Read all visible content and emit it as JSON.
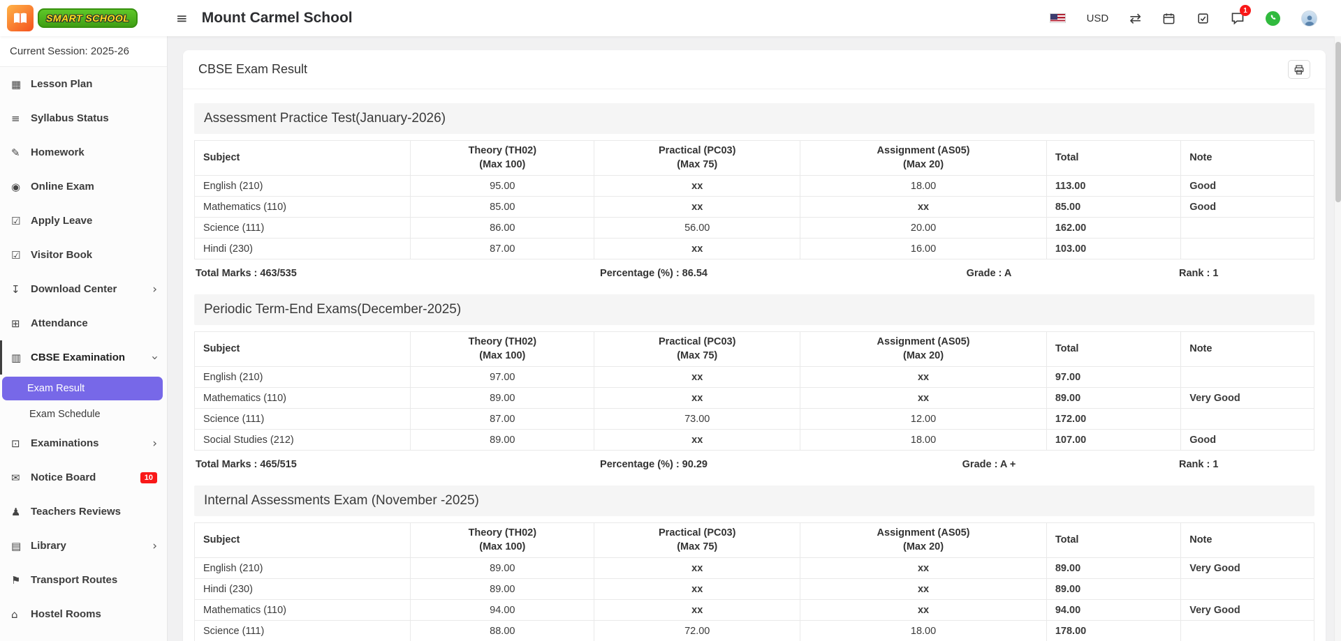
{
  "header": {
    "logo_text": "SMART SCHOOL",
    "school_name": "Mount Carmel School",
    "currency": "USD",
    "chat_badge": "1",
    "icons": {
      "hamburger": "≡",
      "exchange": "⇄"
    }
  },
  "colors": {
    "accent_purple": "#7768e8",
    "badge_red": "#f91818",
    "whatsapp_green": "#31ba3e",
    "logo_green": "#4aad1e",
    "logo_orange": "#f4511e",
    "section_band": "#f5f5f5"
  },
  "sidebar": {
    "session": "Current Session: 2025-26",
    "items": [
      {
        "label": "Lesson Plan",
        "icon": "lesson-plan-icon",
        "glyph": "▦"
      },
      {
        "label": "Syllabus Status",
        "icon": "syllabus-status-icon",
        "glyph": "≡"
      },
      {
        "label": "Homework",
        "icon": "homework-icon",
        "glyph": "✎"
      },
      {
        "label": "Online Exam",
        "icon": "online-exam-icon",
        "glyph": "◉"
      },
      {
        "label": "Apply Leave",
        "icon": "apply-leave-icon",
        "glyph": "☑"
      },
      {
        "label": "Visitor Book",
        "icon": "visitor-book-icon",
        "glyph": "☑"
      },
      {
        "label": "Download Center",
        "icon": "download-center-icon",
        "glyph": "↧",
        "chevron": "right"
      },
      {
        "label": "Attendance",
        "icon": "attendance-icon",
        "glyph": "⊞"
      },
      {
        "label": "CBSE Examination",
        "icon": "cbse-examination-icon",
        "glyph": "▥",
        "chevron": "down",
        "active": true,
        "children": [
          {
            "label": "Exam Result",
            "active": true
          },
          {
            "label": "Exam Schedule"
          }
        ]
      },
      {
        "label": "Examinations",
        "icon": "examinations-icon",
        "glyph": "⊡",
        "chevron": "right"
      },
      {
        "label": "Notice Board",
        "icon": "notice-board-icon",
        "glyph": "✉",
        "badge": "10"
      },
      {
        "label": "Teachers Reviews",
        "icon": "teachers-reviews-icon",
        "glyph": "♟"
      },
      {
        "label": "Library",
        "icon": "library-icon",
        "glyph": "▤",
        "chevron": "right"
      },
      {
        "label": "Transport Routes",
        "icon": "transport-routes-icon",
        "glyph": "⚑"
      },
      {
        "label": "Hostel Rooms",
        "icon": "hostel-rooms-icon",
        "glyph": "⌂"
      }
    ]
  },
  "main": {
    "page_title": "CBSE Exam Result",
    "exams": [
      {
        "title": "Assessment Practice Test(January-2026)",
        "columns": [
          "Subject",
          "Theory (TH02)\n(Max 100)",
          "Practical (PC03)\n(Max 75)",
          "Assignment (AS05)\n(Max 20)",
          "Total",
          "Note"
        ],
        "rows": [
          [
            "English (210)",
            "95.00",
            "xx",
            "18.00",
            "113.00",
            "Good"
          ],
          [
            "Mathematics (110)",
            "85.00",
            "xx",
            "xx",
            "85.00",
            "Good"
          ],
          [
            "Science (111)",
            "86.00",
            "56.00",
            "20.00",
            "162.00",
            ""
          ],
          [
            "Hindi (230)",
            "87.00",
            "xx",
            "16.00",
            "103.00",
            ""
          ]
        ],
        "summary": [
          "Total Marks : 463/535",
          "Percentage (%) : 86.54",
          "Grade : A",
          "Rank : 1"
        ]
      },
      {
        "title": "Periodic Term-End Exams(December-2025)",
        "columns": [
          "Subject",
          "Theory (TH02)\n(Max 100)",
          "Practical (PC03)\n(Max 75)",
          "Assignment (AS05)\n(Max 20)",
          "Total",
          "Note"
        ],
        "rows": [
          [
            "English (210)",
            "97.00",
            "xx",
            "xx",
            "97.00",
            ""
          ],
          [
            "Mathematics (110)",
            "89.00",
            "xx",
            "xx",
            "89.00",
            "Very Good"
          ],
          [
            "Science (111)",
            "87.00",
            "73.00",
            "12.00",
            "172.00",
            ""
          ],
          [
            "Social Studies (212)",
            "89.00",
            "xx",
            "18.00",
            "107.00",
            "Good"
          ]
        ],
        "summary": [
          "Total Marks : 465/515",
          "Percentage (%) : 90.29",
          "Grade : A +",
          "Rank : 1"
        ]
      },
      {
        "title": "Internal Assessments Exam (November -2025)",
        "columns": [
          "Subject",
          "Theory (TH02)\n(Max 100)",
          "Practical (PC03)\n(Max 75)",
          "Assignment (AS05)\n(Max 20)",
          "Total",
          "Note"
        ],
        "rows": [
          [
            "English (210)",
            "89.00",
            "xx",
            "xx",
            "89.00",
            "Very Good"
          ],
          [
            "Hindi (230)",
            "89.00",
            "xx",
            "xx",
            "89.00",
            ""
          ],
          [
            "Mathematics (110)",
            "94.00",
            "xx",
            "xx",
            "94.00",
            "Very Good"
          ],
          [
            "Science (111)",
            "88.00",
            "72.00",
            "18.00",
            "178.00",
            ""
          ]
        ]
      }
    ]
  }
}
